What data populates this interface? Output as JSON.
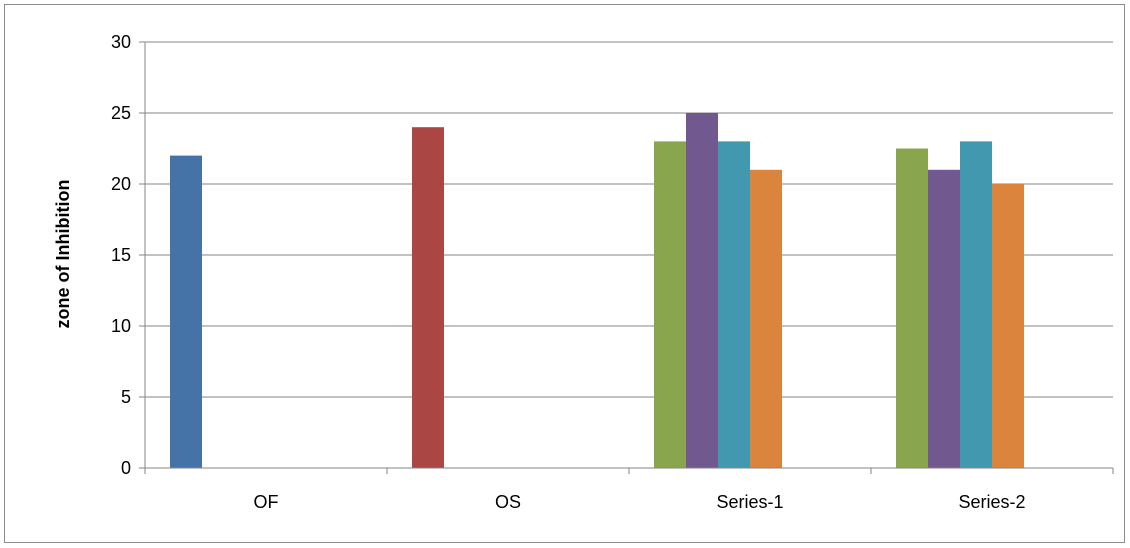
{
  "chart_data": {
    "type": "bar",
    "title": "",
    "xlabel": "",
    "ylabel": "zone of Inhibition",
    "ylim": [
      0,
      30
    ],
    "yticks": [
      0,
      5,
      10,
      15,
      20,
      25,
      30
    ],
    "grid": true,
    "legend": "none",
    "categories": [
      "OF",
      "OS",
      "Series-1",
      "Series-2"
    ],
    "series": [
      {
        "color": "#4572A7",
        "values": [
          22,
          null,
          null,
          null
        ]
      },
      {
        "color": "#AA4643",
        "values": [
          null,
          24,
          null,
          null
        ]
      },
      {
        "color": "#89A54E",
        "values": [
          null,
          null,
          23,
          22.5
        ]
      },
      {
        "color": "#71588F",
        "values": [
          null,
          null,
          25,
          21
        ]
      },
      {
        "color": "#4198AF",
        "values": [
          null,
          null,
          23,
          23
        ]
      },
      {
        "color": "#DB843D",
        "values": [
          null,
          null,
          21,
          20
        ]
      }
    ]
  }
}
